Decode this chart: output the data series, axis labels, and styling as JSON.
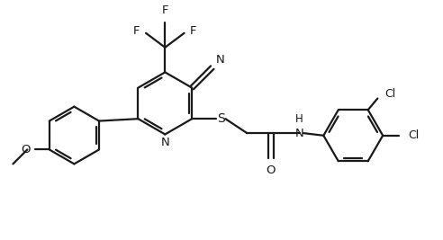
{
  "bg_color": "#ffffff",
  "line_color": "#1a1a1a",
  "line_width": 1.6,
  "font_size": 9.5,
  "figsize": [
    4.92,
    2.67
  ],
  "dpi": 100,
  "xlim": [
    0,
    9.2
  ],
  "ylim": [
    0,
    5.0
  ]
}
